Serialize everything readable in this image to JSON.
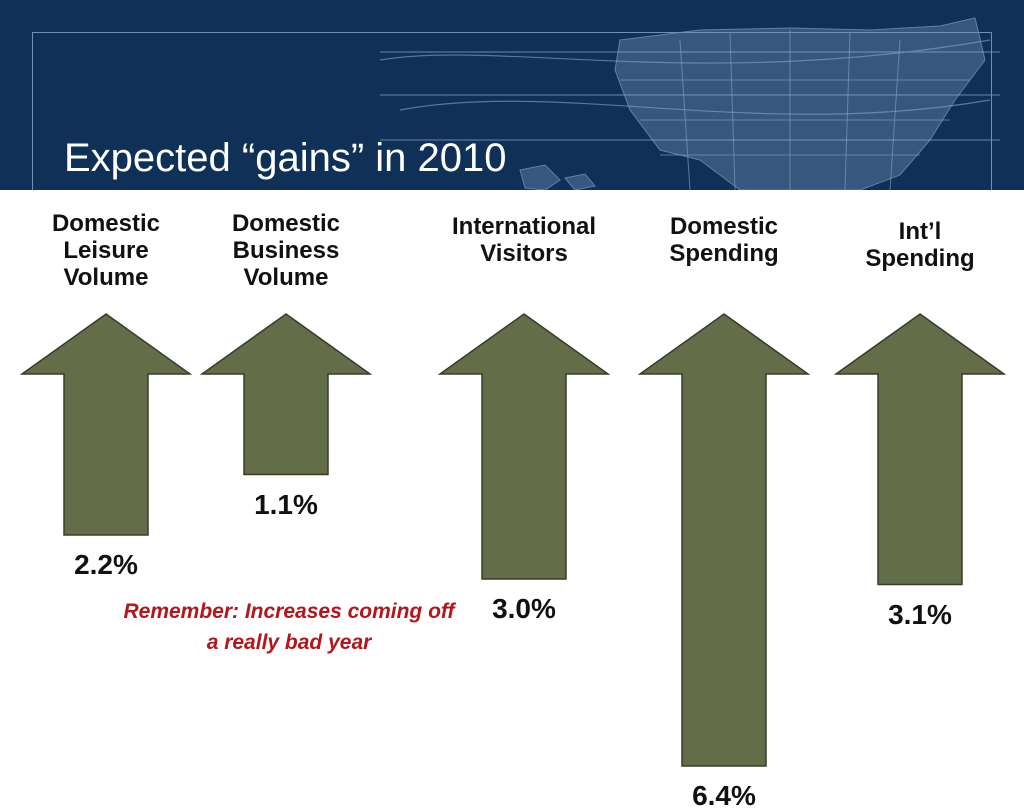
{
  "header": {
    "title": "Expected “gains” in 2010"
  },
  "note": {
    "line1": "Remember:  Increases coming off",
    "line2": "a really bad year"
  },
  "colors": {
    "header_bg": "#0f3057",
    "arrow_fill": "#636e49",
    "arrow_stroke": "#3a3a2a",
    "note": "#b3161b"
  },
  "chart_data": {
    "type": "bar",
    "categories": [
      "Domestic\nLeisure\nVolume",
      "Domestic\nBusiness\nVolume",
      "International\nVisitors",
      "Domestic\nSpending",
      "Int’l\nSpending"
    ],
    "values": [
      2.2,
      1.1,
      3.0,
      6.4,
      3.1
    ],
    "value_labels": [
      "2.2%",
      "1.1%",
      "3.0%",
      "6.4%",
      "3.1%"
    ],
    "unit": "%",
    "mark": "up-arrow"
  }
}
